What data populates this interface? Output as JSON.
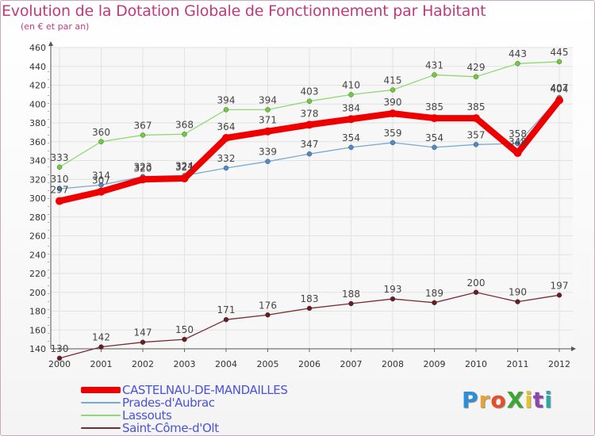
{
  "title": "Evolution de la Dotation Globale de Fonctionnement par Habitant",
  "subtitle": "(en € et par an)",
  "logo": {
    "text": "ProXiti",
    "colors": [
      "#2a8fd8",
      "#e8a23a",
      "#e74c2b",
      "#3fa535",
      "#e8c22a",
      "#8e44ad",
      "#2aa7a7"
    ]
  },
  "chart_data": {
    "type": "line",
    "x": [
      "2000",
      "2001",
      "2002",
      "2003",
      "2004",
      "2005",
      "2006",
      "2007",
      "2008",
      "2009",
      "2010",
      "2011",
      "2012"
    ],
    "ylim": [
      140,
      460
    ],
    "yticks": [
      "140",
      "160",
      "180",
      "200",
      "220",
      "240",
      "260",
      "280",
      "300",
      "320",
      "340",
      "360",
      "380",
      "400",
      "420",
      "440",
      "460"
    ],
    "grid": true,
    "legend_position": "bottom-left",
    "series": [
      {
        "name": "Lassouts",
        "color": "#8fd873",
        "marker": "#6ccf3a",
        "width": 1.3,
        "values": [
          333,
          360,
          367,
          368,
          394,
          394,
          403,
          410,
          415,
          431,
          429,
          443,
          445
        ],
        "labels": [
          "333",
          "360",
          "367",
          "368",
          "394",
          "394",
          "403",
          "410",
          "415",
          "431",
          "429",
          "443",
          "445"
        ]
      },
      {
        "name": "Prades-d'Aubrac",
        "color": "#7aa9cf",
        "marker": "#4a8ccc",
        "width": 1.3,
        "values": [
          310,
          314,
          323,
          324,
          332,
          339,
          347,
          354,
          359,
          354,
          357,
          358,
          407
        ],
        "labels": [
          "310",
          "314",
          "323",
          "324",
          "332",
          "339",
          "347",
          "354",
          "359",
          "354",
          "357",
          "358",
          "407"
        ]
      },
      {
        "name": "Saint-Côme-d'Olt",
        "color": "#7a2a34",
        "marker": "#6a1a24",
        "width": 1.3,
        "values": [
          130,
          142,
          147,
          150,
          171,
          176,
          183,
          188,
          193,
          189,
          200,
          190,
          197
        ],
        "labels": [
          "130",
          "142",
          "147",
          "150",
          "171",
          "176",
          "183",
          "188",
          "193",
          "189",
          "200",
          "190",
          "197"
        ]
      },
      {
        "name": "CASTELNAU-DE-MANDAILLES",
        "color": "#ee0000",
        "marker": "#ee0000",
        "width": 8,
        "values": [
          297,
          307,
          320,
          321,
          364,
          371,
          378,
          384,
          390,
          385,
          385,
          348,
          404
        ],
        "labels": [
          "297",
          "307",
          "320",
          "321",
          "364",
          "371",
          "378",
          "384",
          "390",
          "385",
          "385",
          "348",
          "404"
        ]
      }
    ],
    "legend": [
      {
        "name": "CASTELNAU-DE-MANDAILLES",
        "color": "#ee0000",
        "height": 8
      },
      {
        "name": "Prades-d'Aubrac",
        "color": "#7aa9cf",
        "height": 2
      },
      {
        "name": "Lassouts",
        "color": "#8fd873",
        "height": 2
      },
      {
        "name": "Saint-Côme-d'Olt",
        "color": "#7a2a34",
        "height": 2
      }
    ]
  }
}
